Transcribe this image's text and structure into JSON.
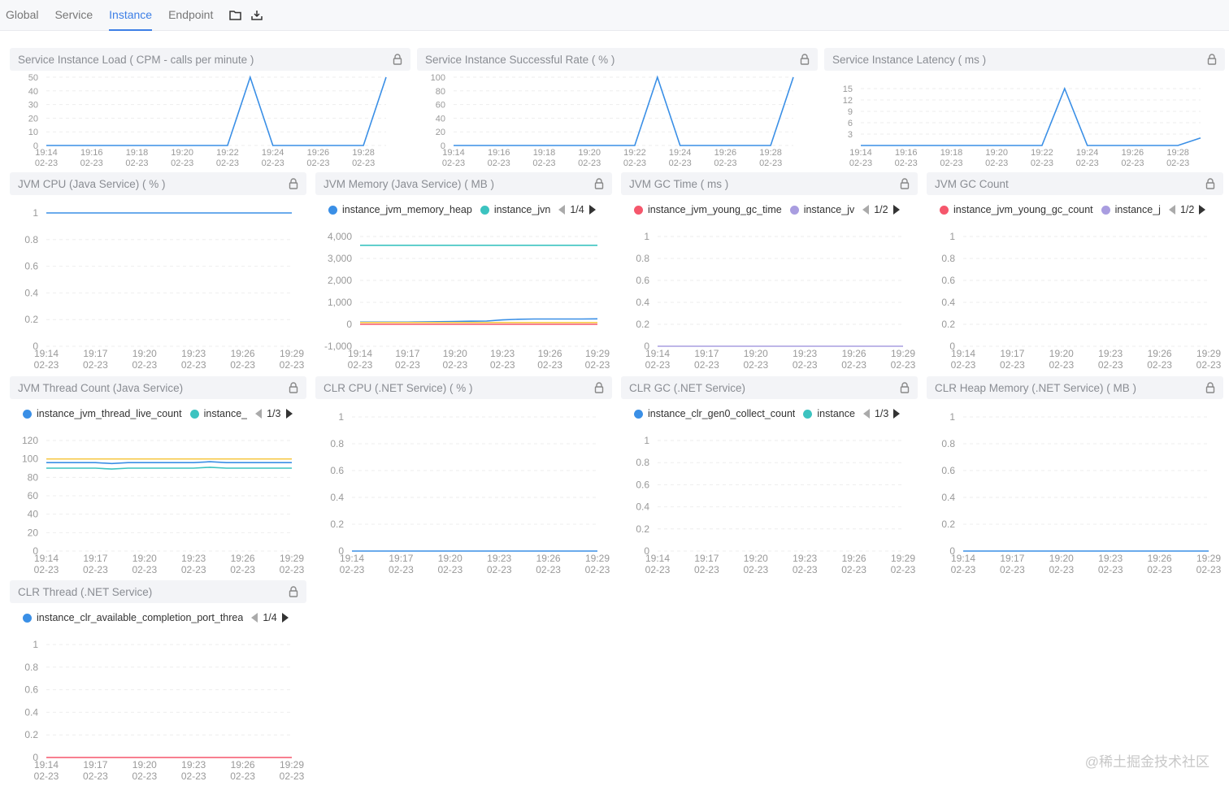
{
  "nav": {
    "tabs": [
      "Global",
      "Service",
      "Instance",
      "Endpoint"
    ],
    "active": "Instance",
    "icons": [
      "folder-icon",
      "download-icon"
    ]
  },
  "colors": {
    "accent": "#3d7fe6",
    "blue": "#3a8fe6",
    "cyan": "#3cc3c0",
    "red": "#f5576c",
    "purple": "#a99de0",
    "yellow": "#f7c948",
    "orange": "#f89d4f"
  },
  "watermark": "@稀土掘金技术社区",
  "times": [
    "19:14",
    "19:15",
    "19:16",
    "19:17",
    "19:18",
    "19:19",
    "19:20",
    "19:21",
    "19:22",
    "19:23",
    "19:24",
    "19:25",
    "19:26",
    "19:27",
    "19:28",
    "19:29"
  ],
  "date": "02-23",
  "panels": [
    {
      "title": "Service Instance Load ( CPM - calls per minute )",
      "yticks": [
        0,
        10,
        20,
        30,
        40,
        50
      ],
      "ylim": [
        0,
        50
      ],
      "xstep": 2,
      "series": [
        {
          "name": "load",
          "color": "#3a8fe6",
          "values": [
            0,
            0,
            0,
            0,
            0,
            0,
            0,
            0,
            0,
            50,
            0,
            0,
            0,
            0,
            0,
            50
          ]
        }
      ]
    },
    {
      "title": "Service Instance Successful Rate ( % )",
      "yticks": [
        0,
        20,
        40,
        60,
        80,
        100
      ],
      "ylim": [
        0,
        100
      ],
      "xstep": 2,
      "series": [
        {
          "name": "sla",
          "color": "#3a8fe6",
          "values": [
            0,
            0,
            0,
            0,
            0,
            0,
            0,
            0,
            0,
            100,
            0,
            0,
            0,
            0,
            0,
            100
          ]
        }
      ]
    },
    {
      "title": "Service Instance Latency ( ms )",
      "yticks": [
        3,
        6,
        9,
        12,
        15
      ],
      "ylim": [
        0,
        18
      ],
      "xstep": 2,
      "series": [
        {
          "name": "latency",
          "color": "#3a8fe6",
          "values": [
            0,
            0,
            0,
            0,
            0,
            0,
            0,
            0,
            0,
            15,
            0,
            0,
            0,
            0,
            0,
            2
          ]
        }
      ]
    },
    {
      "title": "JVM CPU (Java Service) ( % )",
      "yticks": [
        "0",
        "0.2",
        "0.4",
        "0.6",
        "0.8",
        "1"
      ],
      "ylim": [
        0,
        1
      ],
      "xstep": 3,
      "series": [
        {
          "name": "cpu",
          "color": "#3a8fe6",
          "values": [
            1,
            1,
            1,
            1,
            1,
            1,
            1,
            1,
            1,
            1,
            1,
            1,
            1,
            1,
            1,
            1
          ]
        }
      ]
    },
    {
      "title": "JVM Memory (Java Service) ( MB )",
      "legend": {
        "items": [
          {
            "label": "instance_jvm_memory_heap",
            "color": "#3a8fe6"
          },
          {
            "label": "instance_jvn",
            "color": "#3cc3c0"
          }
        ],
        "page": "1/4"
      },
      "yticks": [
        "-1,000",
        "0",
        "1,000",
        "2,000",
        "3,000",
        "4,000"
      ],
      "ylim": [
        -1000,
        4000
      ],
      "xstep": 3,
      "series": [
        {
          "name": "heap",
          "color": "#3a8fe6",
          "values": [
            100,
            100,
            100,
            100,
            110,
            120,
            130,
            140,
            150,
            200,
            230,
            240,
            240,
            240,
            240,
            250
          ]
        },
        {
          "name": "heap_max",
          "color": "#3cc3c0",
          "values": [
            3600,
            3600,
            3600,
            3600,
            3600,
            3600,
            3600,
            3600,
            3600,
            3600,
            3600,
            3600,
            3600,
            3600,
            3600,
            3600
          ]
        },
        {
          "name": "nonheap",
          "color": "#f7c948",
          "values": [
            80,
            80,
            80,
            80,
            80,
            80,
            80,
            80,
            80,
            80,
            80,
            80,
            80,
            80,
            80,
            80
          ]
        },
        {
          "name": "nonheap_max",
          "color": "#f5576c",
          "values": [
            0,
            0,
            0,
            0,
            0,
            0,
            0,
            0,
            0,
            0,
            0,
            0,
            0,
            0,
            0,
            0
          ]
        }
      ]
    },
    {
      "title": "JVM GC Time ( ms )",
      "legend": {
        "items": [
          {
            "label": "instance_jvm_young_gc_time",
            "color": "#f5576c"
          },
          {
            "label": "instance_jv",
            "color": "#a99de0"
          }
        ],
        "page": "1/2"
      },
      "yticks": [
        "0",
        "0.2",
        "0.4",
        "0.6",
        "0.8",
        "1"
      ],
      "ylim": [
        0,
        1
      ],
      "xstep": 3,
      "series": [
        {
          "name": "old_gc",
          "color": "#a99de0",
          "values": [
            0,
            0,
            0,
            0,
            0,
            0,
            0,
            0,
            0,
            0,
            0,
            0,
            0,
            0,
            0,
            0
          ]
        }
      ]
    },
    {
      "title": "JVM GC Count",
      "legend": {
        "items": [
          {
            "label": "instance_jvm_young_gc_count",
            "color": "#f5576c"
          },
          {
            "label": "instance_j",
            "color": "#a99de0"
          }
        ],
        "page": "1/2"
      },
      "yticks": [
        "0",
        "0.2",
        "0.4",
        "0.6",
        "0.8",
        "1"
      ],
      "ylim": [
        0,
        1
      ],
      "xstep": 3,
      "series": []
    },
    {
      "title": "JVM Thread Count (Java Service)",
      "legend": {
        "items": [
          {
            "label": "instance_jvm_thread_live_count",
            "color": "#3a8fe6"
          },
          {
            "label": "instance_",
            "color": "#3cc3c0"
          }
        ],
        "page": "1/3"
      },
      "yticks": [
        0,
        20,
        40,
        60,
        80,
        100,
        120
      ],
      "ylim": [
        0,
        120
      ],
      "xstep": 3,
      "series": [
        {
          "name": "peak",
          "color": "#f7c948",
          "values": [
            100,
            100,
            100,
            100,
            100,
            100,
            100,
            100,
            100,
            100,
            100,
            100,
            100,
            100,
            100,
            100
          ]
        },
        {
          "name": "live",
          "color": "#3a8fe6",
          "values": [
            96,
            96,
            96,
            96,
            95,
            96,
            96,
            96,
            96,
            96,
            97,
            96,
            96,
            96,
            96,
            96
          ]
        },
        {
          "name": "daemon",
          "color": "#3cc3c0",
          "values": [
            90,
            90,
            90,
            90,
            89,
            90,
            90,
            90,
            90,
            90,
            91,
            90,
            90,
            90,
            90,
            90
          ]
        }
      ]
    },
    {
      "title": "CLR CPU (.NET Service) ( % )",
      "yticks": [
        "0",
        "0.2",
        "0.4",
        "0.6",
        "0.8",
        "1"
      ],
      "ylim": [
        0,
        1
      ],
      "xstep": 3,
      "series": [
        {
          "name": "clr_cpu",
          "color": "#3a8fe6",
          "values": [
            0,
            0,
            0,
            0,
            0,
            0,
            0,
            0,
            0,
            0,
            0,
            0,
            0,
            0,
            0,
            0
          ]
        }
      ]
    },
    {
      "title": "CLR GC (.NET Service)",
      "legend": {
        "items": [
          {
            "label": "instance_clr_gen0_collect_count",
            "color": "#3a8fe6"
          },
          {
            "label": "instance",
            "color": "#3cc3c0"
          }
        ],
        "page": "1/3"
      },
      "yticks": [
        "0",
        "0.2",
        "0.4",
        "0.6",
        "0.8",
        "1"
      ],
      "ylim": [
        0,
        1
      ],
      "xstep": 3,
      "series": []
    },
    {
      "title": "CLR Heap Memory (.NET Service) ( MB )",
      "yticks": [
        "0",
        "0.2",
        "0.4",
        "0.6",
        "0.8",
        "1"
      ],
      "ylim": [
        0,
        1
      ],
      "xstep": 3,
      "series": [
        {
          "name": "clr_heap",
          "color": "#3a8fe6",
          "values": [
            0,
            0,
            0,
            0,
            0,
            0,
            0,
            0,
            0,
            0,
            0,
            0,
            0,
            0,
            0,
            0
          ]
        }
      ]
    },
    {
      "title": "CLR Thread (.NET Service)",
      "legend": {
        "items": [
          {
            "label": "instance_clr_available_completion_port_threa",
            "color": "#3a8fe6"
          }
        ],
        "page": "1/4"
      },
      "yticks": [
        "0",
        "0.2",
        "0.4",
        "0.6",
        "0.8",
        "1"
      ],
      "ylim": [
        0,
        1
      ],
      "xstep": 3,
      "series": [
        {
          "name": "clr_thread",
          "color": "#f5576c",
          "values": [
            0,
            0,
            0,
            0,
            0,
            0,
            0,
            0,
            0,
            0,
            0,
            0,
            0,
            0,
            0,
            0
          ]
        }
      ]
    }
  ]
}
